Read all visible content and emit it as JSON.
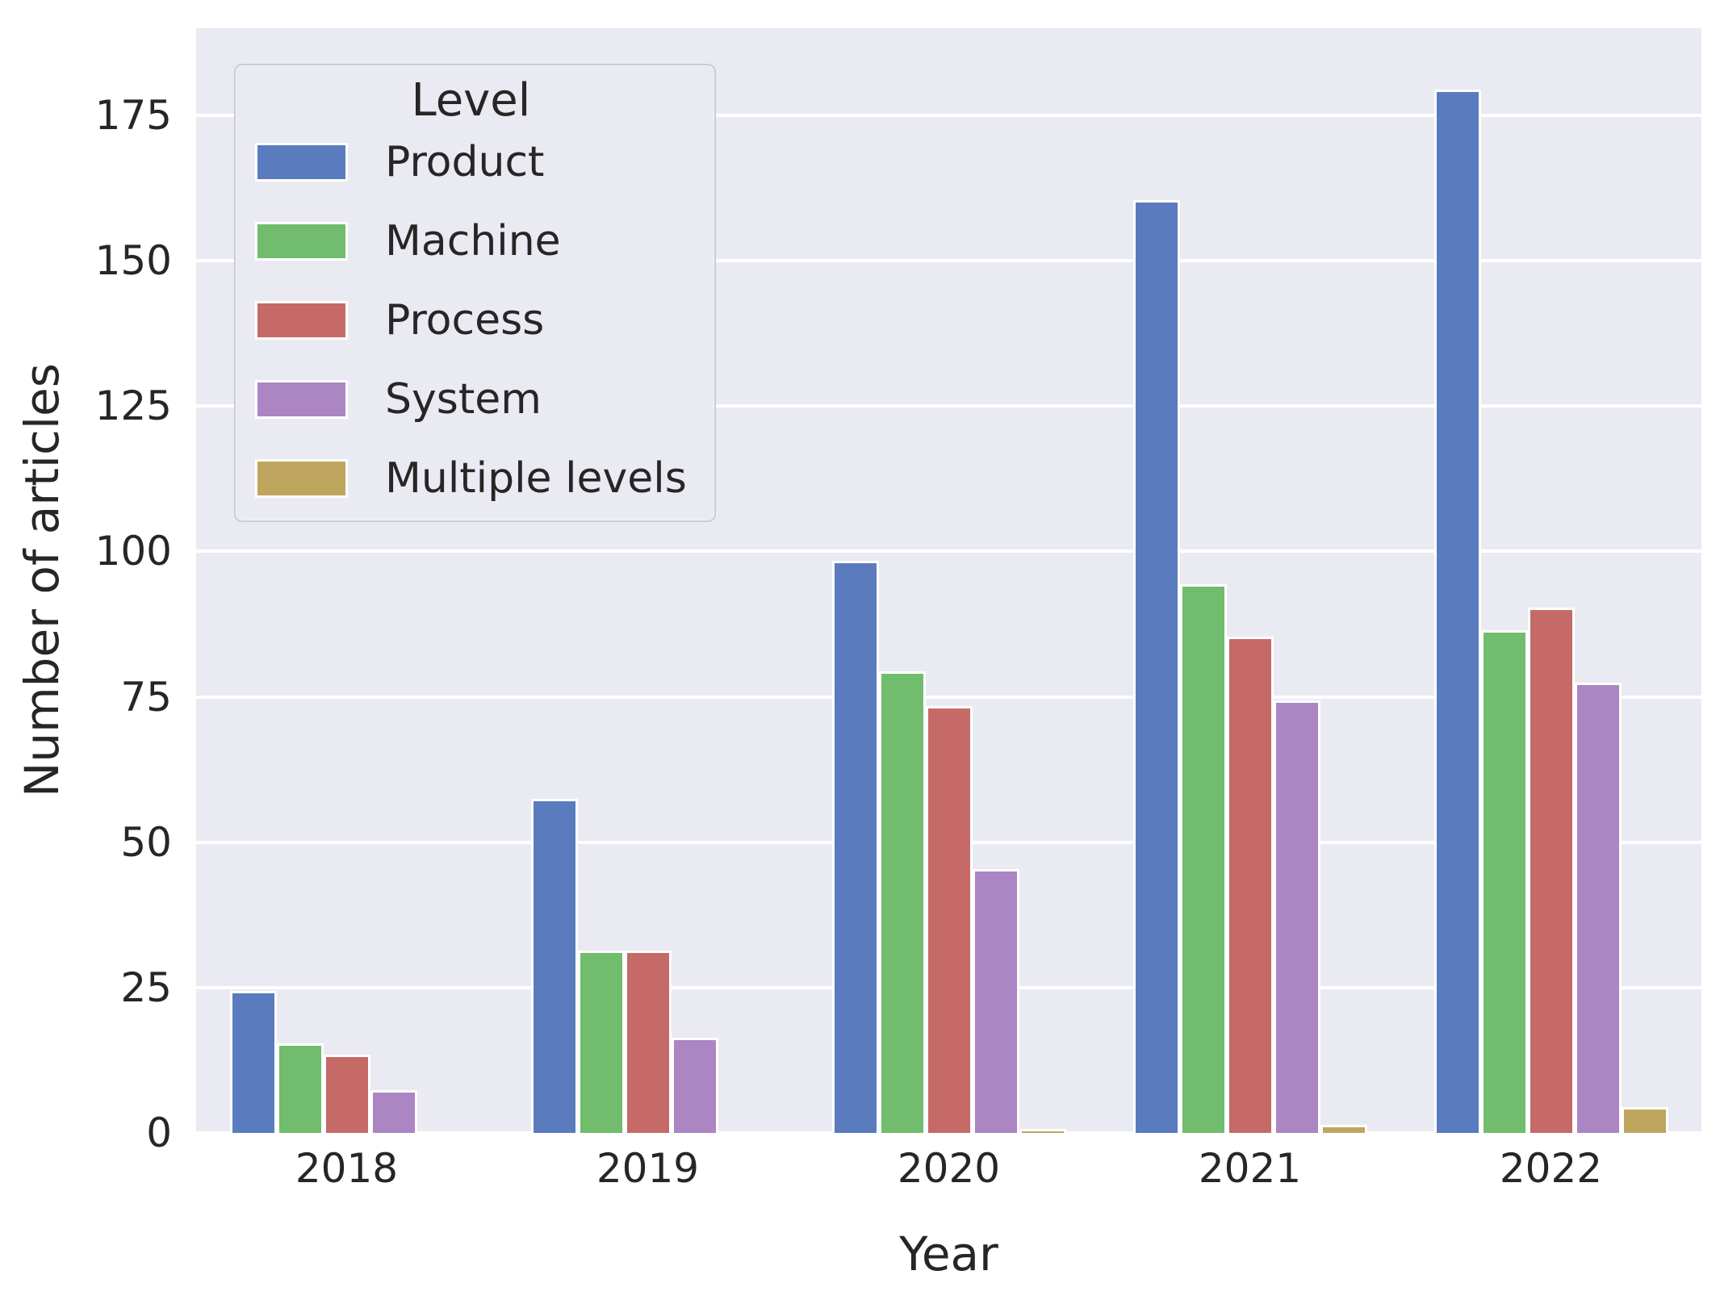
{
  "chart_data": {
    "type": "bar",
    "categories": [
      "2018",
      "2019",
      "2020",
      "2021",
      "2022"
    ],
    "series": [
      {
        "name": "Product",
        "color": "#5a7cbe",
        "values": [
          24,
          57,
          98,
          160,
          179
        ]
      },
      {
        "name": "Machine",
        "color": "#71bc6d",
        "values": [
          15,
          31,
          79,
          94,
          86
        ]
      },
      {
        "name": "Process",
        "color": "#c56a66",
        "values": [
          13,
          31,
          73,
          85,
          90
        ]
      },
      {
        "name": "System",
        "color": "#ac85c3",
        "values": [
          7,
          16,
          45,
          74,
          77
        ]
      },
      {
        "name": "Multiple levels",
        "color": "#bfa65f",
        "values": [
          null,
          null,
          0,
          1,
          4
        ]
      }
    ],
    "title": "",
    "xlabel": "Year",
    "ylabel": "Number of articles",
    "yticks": [
      0,
      25,
      50,
      75,
      100,
      125,
      150,
      175
    ],
    "ylim": [
      0,
      190
    ],
    "grid": true,
    "legend": {
      "title": "Level",
      "position": "upper-left"
    },
    "colors": {
      "plot_background": "#eaeaf2",
      "gridline": "#ffffff",
      "text": "#262626",
      "bar_edge": "#ffffff",
      "legend_border": "#ccccd6"
    }
  }
}
